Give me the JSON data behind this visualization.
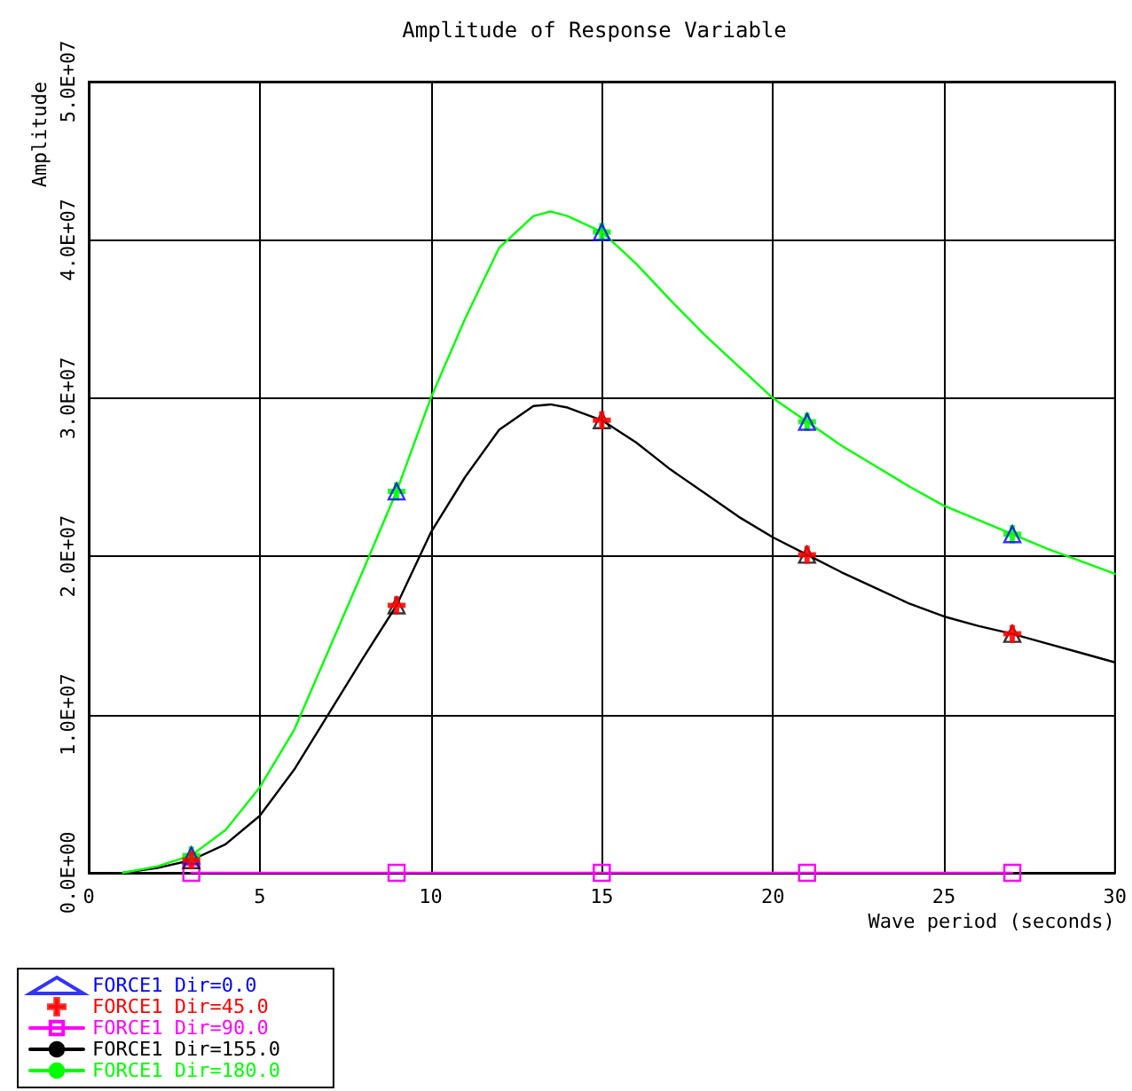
{
  "chart_data": {
    "type": "line",
    "title": "Amplitude of Response Variable",
    "xlabel": "Wave period (seconds)",
    "ylabel": "Amplitude",
    "xlim": [
      0,
      30
    ],
    "xticks": [
      0,
      5,
      10,
      15,
      20,
      25,
      30
    ],
    "ylim": [
      0,
      50000000
    ],
    "yticks": [
      {
        "value": 0,
        "label": "0.0E+00"
      },
      {
        "value": 10000000,
        "label": "1.0E+07"
      },
      {
        "value": 20000000,
        "label": "2.0E+07"
      },
      {
        "value": 30000000,
        "label": "3.0E+07"
      },
      {
        "value": 40000000,
        "label": "4.0E+07"
      },
      {
        "value": 50000000,
        "label": "5.0E+07"
      }
    ],
    "grid": true,
    "legend": "bottom left",
    "line_style": "solid",
    "series": [
      {
        "name": "FORCE1 Dir=0.0",
        "type": "scatter",
        "marker": "triangle",
        "color": "#0000ff",
        "x": [
          3,
          9,
          15,
          21,
          27
        ],
        "values": [
          1100000,
          24100000,
          40500000,
          28500000,
          21400000
        ]
      },
      {
        "name": "FORCE1 Dir=45.0",
        "type": "scatter",
        "marker": "cross",
        "color": "#ff0000",
        "x": [
          3,
          9,
          15,
          21,
          27
        ],
        "values": [
          800000,
          16900000,
          28600000,
          20100000,
          15100000
        ]
      },
      {
        "name": "FORCE1 Dir=90.0",
        "type": "line",
        "marker": "square",
        "color": "#ff00ff",
        "x": [
          3,
          9,
          15,
          21,
          27
        ],
        "values": [
          0,
          0,
          0,
          0,
          0
        ]
      },
      {
        "name": "FORCE1 Dir=155.0",
        "type": "line",
        "marker": "none",
        "color": "#000000",
        "x": [
          1,
          2,
          3,
          4,
          5,
          6,
          7,
          8,
          9,
          10,
          11,
          12,
          13,
          13.5,
          14,
          15,
          16,
          17,
          18,
          19,
          20,
          21,
          22,
          23,
          24,
          25,
          26,
          27,
          28,
          29,
          30
        ],
        "values": [
          0,
          300000,
          800000,
          1800000,
          3600000,
          6500000,
          10000000,
          13500000,
          16900000,
          21500000,
          25000000,
          28000000,
          29500000,
          29600000,
          29400000,
          28600000,
          27200000,
          25500000,
          24000000,
          22500000,
          21200000,
          20100000,
          19000000,
          18000000,
          17000000,
          16200000,
          15600000,
          15100000,
          14500000,
          13900000,
          13300000
        ]
      },
      {
        "name": "FORCE1 Dir=180.0",
        "type": "line",
        "marker": "none",
        "color": "#00ff00",
        "x": [
          1,
          2,
          3,
          4,
          5,
          6,
          7,
          8,
          9,
          10,
          11,
          12,
          13,
          13.5,
          14,
          15,
          16,
          17,
          18,
          19,
          20,
          21,
          22,
          23,
          24,
          25,
          26,
          27,
          28,
          29,
          30
        ],
        "values": [
          0,
          400000,
          1100000,
          2700000,
          5400000,
          9000000,
          14000000,
          19000000,
          24100000,
          30000000,
          35000000,
          39500000,
          41500000,
          41800000,
          41500000,
          40500000,
          38500000,
          36200000,
          34000000,
          32000000,
          30000000,
          28500000,
          27000000,
          25700000,
          24400000,
          23200000,
          22300000,
          21400000,
          20500000,
          19700000,
          18900000
        ]
      },
      {
        "type": "scatter",
        "marker": "triangle",
        "color": "#000000",
        "x": [
          3,
          9,
          15,
          21,
          27
        ],
        "values": [
          800000,
          16900000,
          28600000,
          20100000,
          15100000
        ]
      },
      {
        "type": "scatter",
        "marker": "cross",
        "color": "#00ff00",
        "x": [
          3,
          9,
          15,
          21,
          27
        ],
        "values": [
          1100000,
          24100000,
          40500000,
          28500000,
          21400000
        ]
      }
    ]
  }
}
